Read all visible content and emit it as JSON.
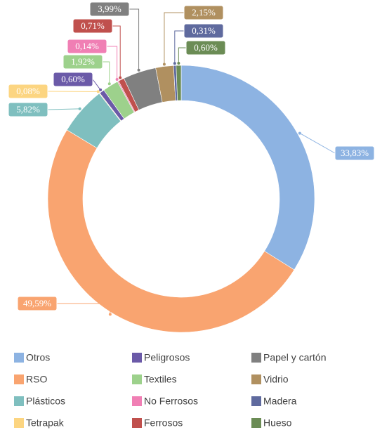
{
  "chart_data": {
    "type": "donut",
    "categories": [
      "Otros",
      "RSO",
      "Plásticos",
      "Tetrapak",
      "Peligrosos",
      "Textiles",
      "No Ferrosos",
      "Ferrosos",
      "Papel y cartón",
      "Vidrio",
      "Madera",
      "Hueso"
    ],
    "values": [
      33.83,
      49.59,
      5.82,
      0.08,
      0.6,
      1.92,
      0.14,
      0.71,
      3.99,
      2.15,
      0.31,
      0.6
    ],
    "value_labels": [
      "33,83%",
      "49,59%",
      "5,82%",
      "0,08%",
      "0,60%",
      "1,92%",
      "0,14%",
      "0,71%",
      "3,99%",
      "2,15%",
      "0,31%",
      "0,60%"
    ],
    "colors": [
      "#8db3e2",
      "#f9a470",
      "#7fbfbf",
      "#fcd581",
      "#6b5aa8",
      "#9dd18c",
      "#f07fb4",
      "#c0504d",
      "#808080",
      "#b09060",
      "#5f6a9e",
      "#6b8c55"
    ]
  }
}
